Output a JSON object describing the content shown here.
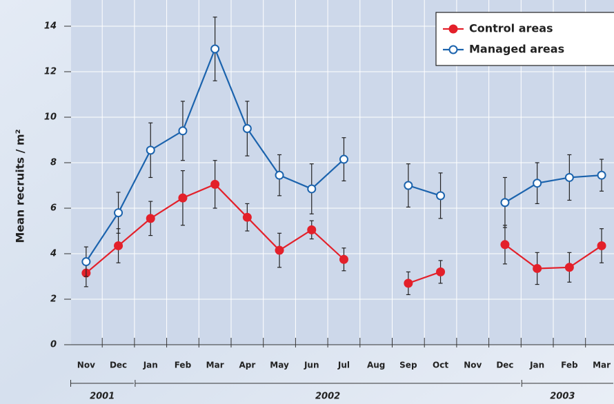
{
  "chart_data": {
    "type": "line",
    "ylabel": "Mean recruits / m²",
    "categories": [
      "Nov",
      "Dec",
      "Jan",
      "Feb",
      "Mar",
      "Apr",
      "May",
      "Jun",
      "Jul",
      "Aug",
      "Sep",
      "Oct",
      "Nov",
      "Dec",
      "Jan",
      "Feb",
      "Mar"
    ],
    "years": [
      "2001",
      "2002",
      "2003"
    ],
    "series": [
      {
        "name": "Control areas",
        "color": "#e3202a",
        "marker": "filled",
        "values": [
          3.15,
          4.35,
          5.55,
          6.45,
          7.05,
          5.6,
          4.15,
          5.05,
          3.75,
          null,
          2.7,
          3.2,
          null,
          4.4,
          3.35,
          3.4,
          4.35
        ],
        "errors": [
          0.6,
          0.75,
          0.75,
          1.2,
          1.05,
          0.6,
          0.75,
          0.4,
          0.5,
          null,
          0.5,
          0.5,
          null,
          0.85,
          0.7,
          0.65,
          0.75
        ]
      },
      {
        "name": "Managed areas",
        "color": "#1b63ad",
        "marker": "open",
        "values": [
          3.65,
          5.8,
          8.55,
          9.4,
          13.0,
          9.5,
          7.45,
          6.85,
          8.15,
          null,
          7.0,
          6.55,
          null,
          6.25,
          7.1,
          7.35,
          7.45
        ],
        "errors": [
          0.65,
          0.9,
          1.2,
          1.3,
          1.4,
          1.2,
          0.9,
          1.1,
          0.95,
          null,
          0.95,
          1.0,
          null,
          1.1,
          0.9,
          1.0,
          0.7
        ]
      }
    ],
    "ylim": [
      0,
      14
    ],
    "yticks": [
      0,
      2,
      4,
      6,
      8,
      10,
      12,
      14
    ],
    "grid": true,
    "legend": "top-right"
  }
}
